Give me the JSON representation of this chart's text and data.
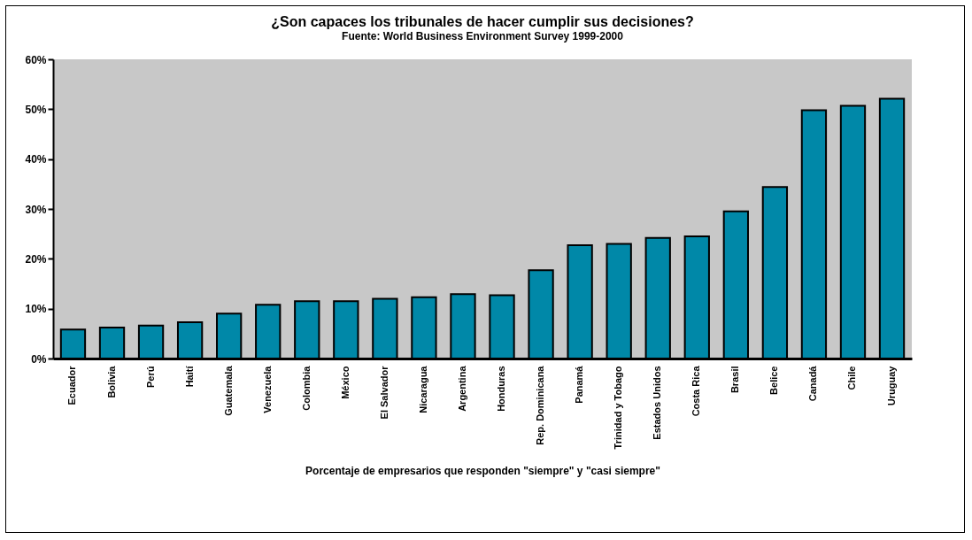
{
  "chart_data": {
    "type": "bar",
    "title": "¿Son capaces los tribunales de hacer cumplir sus decisiones?",
    "subtitle": "Fuente: World Business Environment Survey 1999-2000",
    "xlabel": "Porcentaje de empresarios que responden \"siempre\" y \"casi siempre\"",
    "categories": [
      "Ecuador",
      "Bolivia",
      "Perú",
      "Haití",
      "Guatemala",
      "Venezuela",
      "Colombia",
      "México",
      "El Salvador",
      "Nicaragua",
      "Argentina",
      "Honduras",
      "Rep. Dominicana",
      "Panamá",
      "Trinidad y Tobago",
      "Estados Unidos",
      "Costa Rica",
      "Brasil",
      "Belice",
      "Canadá",
      "Chile",
      "Uruguay"
    ],
    "values": [
      5.8,
      6.2,
      6.6,
      7.3,
      9.0,
      10.8,
      11.5,
      11.5,
      12.0,
      12.3,
      12.9,
      12.7,
      17.7,
      22.7,
      23.0,
      24.2,
      24.5,
      29.5,
      34.4,
      49.8,
      50.7,
      52.1
    ],
    "color": "#0088a8",
    "ylim": [
      0,
      60
    ],
    "yticks": [
      {
        "value": 0,
        "label": "0%"
      },
      {
        "value": 10,
        "label": "10%"
      },
      {
        "value": 20,
        "label": "20%"
      },
      {
        "value": 30,
        "label": "30%"
      },
      {
        "value": 40,
        "label": "40%"
      },
      {
        "value": 50,
        "label": "50%"
      },
      {
        "value": 60,
        "label": "60%"
      }
    ],
    "grid": false
  }
}
